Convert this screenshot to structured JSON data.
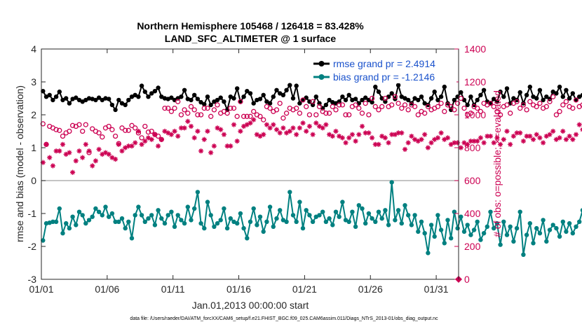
{
  "chart_data": {
    "type": "line",
    "title_line1": "Northern Hemisphere 105468 / 126418 = 83.428%",
    "title_line2": "LAND_SFC_ALTIMETER @ 1 surface",
    "xlabel": "Jan.01,2013 00:00:00 start",
    "ylabel_left": "rmse and bias (model - observation)",
    "ylabel_right": "# of obs: o=possible; ×=evaluated",
    "footnote": "data file: /Users/raeder/DAI/ATM_forcXX/CAM6_setup/f.e21.FHIST_BGC.f09_025.CAM6assim.011/Diags_NTrS_2013-01/obs_diag_output.nc",
    "x_ticks": [
      "01/01",
      "01/06",
      "01/11",
      "01/16",
      "01/21",
      "01/26",
      "01/31"
    ],
    "x_tick_days": [
      0,
      5,
      10,
      15,
      20,
      25,
      30
    ],
    "xlim": [
      0,
      31.7
    ],
    "ylim_left": [
      -3,
      4
    ],
    "y_ticks_left": [
      "-3",
      "-2",
      "-1",
      "0",
      "1",
      "2",
      "3",
      "4"
    ],
    "ylim_right": [
      0,
      1400
    ],
    "y_ticks_right": [
      "0",
      "200",
      "400",
      "600",
      "800",
      "1000",
      "1200",
      "1400"
    ],
    "legend": {
      "rmse": "rmse grand pr = 2.4914",
      "bias": "bias grand pr = -1.2146",
      "placement": "top-right"
    },
    "colors": {
      "rmse": "#000000",
      "bias": "#008080",
      "obs": "#cc0052",
      "zero_line": "#a0a0a0"
    },
    "time_step_days": 0.25,
    "series": [
      {
        "name": "rmse",
        "axis": "left",
        "values": [
          2.72,
          2.55,
          2.6,
          2.45,
          2.55,
          2.7,
          2.45,
          2.5,
          2.35,
          2.48,
          2.52,
          2.45,
          2.4,
          2.45,
          2.5,
          2.48,
          2.45,
          2.52,
          2.45,
          2.5,
          2.48,
          2.3,
          2.15,
          2.45,
          2.35,
          2.3,
          2.45,
          2.55,
          2.6,
          2.55,
          2.88,
          2.7,
          2.55,
          2.65,
          2.72,
          2.82,
          2.55,
          2.5,
          2.48,
          2.52,
          2.45,
          2.5,
          2.55,
          2.75,
          2.48,
          2.45,
          2.6,
          2.48,
          2.38,
          2.32,
          2.55,
          2.3,
          2.4,
          2.45,
          2.52,
          2.4,
          2.15,
          2.55,
          2.5,
          2.8,
          2.4,
          2.55,
          2.72,
          2.65,
          2.35,
          2.45,
          2.48,
          2.6,
          2.4,
          2.35,
          2.55,
          2.75,
          2.65,
          2.6,
          2.75,
          2.9,
          2.5,
          2.88,
          2.35,
          2.45,
          2.52,
          2.4,
          2.3,
          2.55,
          2.35,
          2.2,
          2.3,
          2.45,
          2.38,
          2.35,
          2.4,
          2.55,
          2.45,
          2.6,
          2.45,
          2.48,
          2.35,
          2.45,
          2.52,
          2.45,
          2.38,
          2.85,
          2.7,
          2.5,
          2.4,
          2.55,
          2.65,
          2.48,
          2.9,
          2.55,
          2.5,
          2.45,
          2.35,
          2.5,
          2.45,
          2.55,
          2.35,
          2.3,
          2.5,
          2.7,
          2.45,
          2.55,
          2.85,
          2.35,
          2.15,
          2.45,
          2.55,
          2.68,
          2.45,
          2.3,
          2.55,
          2.3,
          2.45,
          2.6,
          2.75,
          2.4,
          2.35,
          2.48,
          2.4,
          2.7,
          2.55,
          2.8,
          2.35,
          2.5,
          2.45,
          2.68,
          2.35,
          2.6,
          2.85,
          2.55,
          2.5,
          2.75,
          2.45,
          2.55,
          2.48,
          2.7,
          2.65,
          2.85,
          2.55,
          2.75,
          2.5,
          2.65,
          2.45,
          2.55,
          2.6,
          2.5,
          2.7,
          2.55,
          2.45,
          2.5,
          2.45,
          2.65,
          2.35,
          2.7,
          2.45,
          2.6,
          2.55,
          2.45,
          2.5,
          2.35,
          2.2,
          2.45,
          2.4,
          2.55,
          2.45,
          2.5,
          2.35,
          2.55,
          2.3,
          2.15,
          2.4,
          2.5,
          2.25,
          2.65,
          2.55,
          2.35,
          2.4,
          2.55,
          2.45,
          2.3,
          2.05,
          2.3,
          2.35,
          2.2,
          2.25,
          2.45,
          2.2,
          2.1,
          1.95
        ]
      },
      {
        "name": "bias",
        "axis": "left",
        "values": [
          -1.82,
          -1.3,
          -1.28,
          -1.25,
          -1.25,
          -0.85,
          -1.6,
          -1.3,
          -1.45,
          -1.1,
          -1.35,
          -0.95,
          -1.05,
          -1.3,
          -1.2,
          -1.1,
          -0.85,
          -0.95,
          -1.05,
          -0.8,
          -1.1,
          -1.0,
          -1.25,
          -1.25,
          -1.15,
          -1.45,
          -1.25,
          -1.75,
          -1.05,
          -0.8,
          -1.05,
          -1.25,
          -1.15,
          -1.05,
          -1.35,
          -0.9,
          -1.15,
          -1.3,
          -1.05,
          -0.95,
          -1.4,
          -1.05,
          -1.2,
          -1.3,
          -0.8,
          -1.2,
          -0.85,
          -0.35,
          -1.3,
          -1.45,
          -0.65,
          -1.05,
          -1.4,
          -1.3,
          -1.2,
          -0.85,
          -1.45,
          -1.15,
          -1.25,
          -1.3,
          -1.0,
          -1.45,
          -1.75,
          -1.25,
          -0.85,
          -1.35,
          -1.1,
          -1.55,
          -1.25,
          -0.8,
          -1.4,
          -1.15,
          -0.9,
          -1.2,
          -1.25,
          -0.35,
          -1.05,
          -1.25,
          -0.65,
          -1.45,
          -0.9,
          -1.05,
          -1.25,
          -1.1,
          -1.05,
          -0.95,
          -1.25,
          -1.15,
          -1.35,
          -0.95,
          -1.1,
          -0.65,
          -1.2,
          -1.25,
          -0.95,
          -1.4,
          -0.75,
          -0.85,
          -1.3,
          -1.0,
          -1.15,
          -1.25,
          -0.95,
          -1.15,
          -0.9,
          -1.35,
          -0.05,
          -1.2,
          -0.9,
          -1.3,
          -0.75,
          -1.05,
          -1.35,
          -1.05,
          -1.55,
          -1.25,
          -1.6,
          -2.2,
          -1.35,
          -1.7,
          -1.05,
          -1.5,
          -1.9,
          -1.2,
          -1.75,
          -0.95,
          -1.45,
          -1.1,
          -1.55,
          -1.35,
          -1.65,
          -1.5,
          -1.25,
          -1.8,
          -1.6,
          -1.4,
          -0.95,
          -1.45,
          -1.3,
          -1.95,
          -1.25,
          -1.65,
          -1.4,
          -1.85,
          -1.45,
          -0.95,
          -2.25,
          -1.65,
          -1.3,
          -1.9,
          -1.45,
          -1.6,
          -1.2,
          -1.85,
          -1.5,
          -1.35,
          -1.45,
          -1.7,
          -1.25,
          -1.55,
          -1.3,
          -1.6,
          -1.4,
          -1.25,
          -0.9,
          -1.4,
          -1.2,
          -1.55,
          -1.45,
          -1.2,
          -1.5,
          -1.05,
          -1.3,
          -1.6,
          -1.25,
          -1.1,
          -1.35,
          -1.2,
          -0.95,
          -1.25,
          -1.0,
          -1.35,
          -0.55,
          -1.1,
          -1.4,
          -0.9,
          -1.25,
          -1.4,
          -0.85,
          -0.7,
          -1.2,
          -0.95,
          -1.3,
          -0.75,
          -1.05,
          -0.7,
          -0.8,
          -0.75,
          -0.95,
          -0.7,
          -0.8,
          -0.65,
          -1.05,
          -0.55,
          -0.15
        ]
      },
      {
        "name": "possible",
        "axis": "right",
        "marker": "circle",
        "values": [
          945,
          820,
          930,
          920,
          910,
          905,
          870,
          890,
          900,
          935,
          930,
          940,
          900,
          940,
          770,
          915,
          900,
          890,
          865,
          920,
          930,
          910,
          870,
          825,
          920,
          905,
          905,
          935,
          920,
          890,
          860,
          930,
          895,
          900,
          880,
          870,
          850,
          1040,
          1040,
          1020,
          1040,
          1080,
          1000,
          1030,
          1010,
          1050,
          1030,
          1000,
          1000,
          1040,
          1040,
          990,
          1030,
          1060,
          1010,
          1020,
          1010,
          1040,
          1040,
          990,
          1080,
          990,
          990,
          990,
          1020,
          1000,
          990,
          970,
          1050,
          1040,
          1020,
          1030,
          1070,
          980,
          1010,
          1040,
          1030,
          1040,
          1010,
          1090,
          1050,
          1000,
          1080,
          1000,
          1050,
          1020,
          1010,
          1010,
          1050,
          1030,
          1060,
          1060,
          1000,
          1000,
          1050,
          1060,
          1040,
          1010,
          1070,
          1000,
          1100,
          1050,
          1030,
          1050,
          1100,
          1050,
          1060,
          1110,
          1070,
          1040,
          1060,
          1030,
          1060,
          1050,
          1000,
          1020,
          1010,
          1050,
          1030,
          1040,
          1050,
          1070,
          1020,
          1060,
          1050,
          1030,
          1070,
          1100,
          1040,
          1000,
          1010,
          1050,
          1040,
          1020,
          1070,
          1060,
          1070,
          1050,
          1020,
          1000,
          1050,
          1060,
          1010,
          1070,
          1080,
          1040,
          1060,
          1030,
          1080,
          1060,
          1050,
          1070,
          1040,
          1050,
          1080,
          1110,
          1000,
          1020,
          1060,
          1080,
          1050,
          1040,
          1090,
          1050,
          1060,
          1040,
          1060,
          1070,
          1050,
          1090,
          1060,
          1070,
          1040,
          1020,
          1100,
          1030,
          1010,
          1080,
          1050,
          1010,
          1060,
          1030,
          1090,
          1020,
          1050,
          1080,
          1060,
          1010,
          1040,
          1010,
          1100,
          1020,
          1090,
          1010,
          1030,
          1050,
          1020,
          1010,
          1040,
          1000,
          1000,
          1070,
          1030,
          1110,
          1110,
          1030
        ]
      },
      {
        "name": "evaluated",
        "axis": "right",
        "marker": "asterisk",
        "values": [
          710,
          820,
          740,
          690,
          780,
          780,
          820,
          760,
          770,
          650,
          720,
          780,
          740,
          820,
          780,
          690,
          720,
          790,
          760,
          770,
          760,
          740,
          730,
          820,
          780,
          800,
          810,
          810,
          830,
          900,
          820,
          840,
          860,
          850,
          880,
          810,
          850,
          900,
          890,
          880,
          900,
          870,
          920,
          920,
          960,
          930,
          860,
          900,
          780,
          850,
          900,
          770,
          810,
          920,
          910,
          880,
          810,
          810,
          940,
          840,
          900,
          930,
          940,
          950,
          970,
          880,
          870,
          880,
          940,
          920,
          940,
          910,
          890,
          920,
          890,
          900,
          920,
          880,
          920,
          950,
          900,
          930,
          880,
          950,
          930,
          920,
          940,
          880,
          870,
          900,
          870,
          860,
          830,
          860,
          880,
          840,
          880,
          930,
          890,
          890,
          860,
          820,
          820,
          870,
          860,
          830,
          880,
          880,
          890,
          890,
          790,
          830,
          870,
          850,
          840,
          850,
          880,
          800,
          830,
          850,
          860,
          890,
          850,
          860,
          820,
          830,
          830,
          800,
          830,
          820,
          840,
          840,
          840,
          860,
          830,
          870,
          870,
          830,
          860,
          820,
          850,
          900,
          820,
          870,
          890,
          890,
          840,
          870,
          870,
          850,
          880,
          860,
          830,
          870,
          880,
          900,
          850,
          860,
          900,
          850,
          870,
          850,
          880,
          940,
          910,
          880,
          920,
          940,
          920,
          910,
          870,
          850,
          920,
          860,
          880,
          880,
          890,
          860,
          870,
          880,
          840,
          820,
          860,
          880,
          850,
          890,
          900,
          880,
          840,
          850,
          880,
          850,
          830,
          880,
          860,
          880,
          900,
          920,
          900,
          930,
          920,
          890,
          880,
          860,
          850,
          800,
          940,
          960,
          960
        ]
      }
    ]
  }
}
